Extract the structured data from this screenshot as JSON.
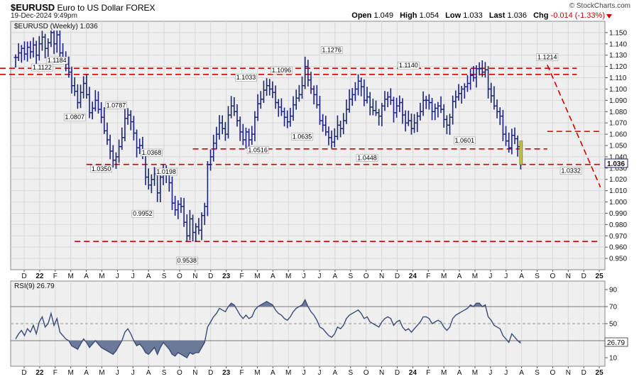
{
  "header": {
    "symbol": "$EURUSD",
    "name": "Euro to US Dollar",
    "exchange": "FOREX",
    "date": "19-Dec-2024 9:49pm",
    "copyright": "© StockCharts.com",
    "quote": {
      "open_label": "Open",
      "open": "1.049",
      "high_label": "High",
      "high": "1.054",
      "low_label": "Low",
      "low": "1.033",
      "last_label": "Last",
      "last": "1.036",
      "chg_label": "Chg",
      "chg": "-0.014 (-1.33%)"
    }
  },
  "price_legend": "$EURUSD (Weekly) 1.036",
  "rsi_legend": "RSI(9) 26.79",
  "price_last_tag": "1.036",
  "rsi_last_tag": "26.79",
  "x_ticks": [
    "D",
    "22",
    "F",
    "M",
    "A",
    "M",
    "J",
    "J",
    "A",
    "S",
    "O",
    "N",
    "D",
    "23",
    "F",
    "M",
    "A",
    "M",
    "J",
    "J",
    "A",
    "S",
    "O",
    "N",
    "D",
    "24",
    "F",
    "M",
    "A",
    "M",
    "J",
    "J",
    "A",
    "S",
    "O",
    "N",
    "D",
    "25"
  ],
  "chart_data": [
    {
      "type": "bar",
      "subtype": "ohlc-weekly",
      "title": "$EURUSD (Weekly) 1.036",
      "ylim": [
        0.94,
        1.16
      ],
      "y_ticks": [
        0.95,
        0.96,
        0.97,
        0.98,
        0.99,
        1.0,
        1.01,
        1.02,
        1.03,
        1.04,
        1.05,
        1.06,
        1.07,
        1.08,
        1.09,
        1.1,
        1.11,
        1.12,
        1.13,
        1.14,
        1.15
      ],
      "y_axis_side": "right",
      "grid": true,
      "closes": [
        1.128,
        1.132,
        1.136,
        1.131,
        1.137,
        1.133,
        1.139,
        1.13,
        1.14,
        1.146,
        1.136,
        1.141,
        1.15,
        1.14,
        1.148,
        1.132,
        1.128,
        1.122,
        1.115,
        1.103,
        1.098,
        1.088,
        1.097,
        1.105,
        1.095,
        1.079,
        1.083,
        1.09,
        1.082,
        1.075,
        1.063,
        1.055,
        1.045,
        1.037,
        1.04,
        1.049,
        1.057,
        1.074,
        1.077,
        1.071,
        1.061,
        1.048,
        1.05,
        1.042,
        1.022,
        1.015,
        1.02,
        1.025,
        1.008,
        1.022,
        1.029,
        1.025,
        1.017,
        0.999,
        0.993,
        0.998,
        0.996,
        0.982,
        0.97,
        0.985,
        0.973,
        0.978,
        0.975,
        0.988,
        0.996,
        1.033,
        1.04,
        1.052,
        1.06,
        1.07,
        1.065,
        1.06,
        1.077,
        1.085,
        1.08,
        1.072,
        1.062,
        1.055,
        1.062,
        1.055,
        1.06,
        1.075,
        1.087,
        1.091,
        1.099,
        1.103,
        1.1,
        1.097,
        1.088,
        1.084,
        1.08,
        1.075,
        1.071,
        1.076,
        1.086,
        1.092,
        1.095,
        1.103,
        1.12,
        1.108,
        1.1,
        1.095,
        1.086,
        1.072,
        1.068,
        1.062,
        1.057,
        1.053,
        1.058,
        1.068,
        1.065,
        1.072,
        1.082,
        1.091,
        1.095,
        1.1,
        1.107,
        1.102,
        1.09,
        1.093,
        1.084,
        1.081,
        1.079,
        1.076,
        1.085,
        1.091,
        1.093,
        1.09,
        1.079,
        1.085,
        1.088,
        1.077,
        1.07,
        1.072,
        1.065,
        1.07,
        1.076,
        1.08,
        1.09,
        1.09,
        1.088,
        1.08,
        1.083,
        1.085,
        1.082,
        1.073,
        1.068,
        1.075,
        1.089,
        1.093,
        1.096,
        1.1,
        1.102,
        1.105,
        1.112,
        1.11,
        1.118,
        1.118,
        1.115,
        1.117,
        1.1,
        1.094,
        1.085,
        1.08,
        1.076,
        1.06,
        1.054,
        1.048,
        1.059,
        1.056,
        1.049,
        1.036
      ],
      "ranges": [
        0.018
      ],
      "labels": [
        {
          "text": "1.1184",
          "x_index": 14,
          "y": 1.1184
        },
        {
          "text": "1.1122",
          "x_index": 9,
          "y": 1.1122
        },
        {
          "text": "1.0807",
          "x_index": 20,
          "y": 1.0807
        },
        {
          "text": "1.0787",
          "x_index": 34,
          "y": 1.0787
        },
        {
          "text": "1.0350",
          "x_index": 29,
          "y": 1.035
        },
        {
          "text": "1.0368",
          "x_index": 46,
          "y": 1.0368
        },
        {
          "text": "1.0198",
          "x_index": 51,
          "y": 1.0198
        },
        {
          "text": "0.9952",
          "x_index": 43,
          "y": 0.9952
        },
        {
          "text": "0.9538",
          "x_index": 58,
          "y": 0.9538
        },
        {
          "text": "1.1033",
          "x_index": 78,
          "y": 1.1033
        },
        {
          "text": "1.0516",
          "x_index": 82,
          "y": 1.0516
        },
        {
          "text": "1.1096",
          "x_index": 90,
          "y": 1.1096
        },
        {
          "text": "1.0635",
          "x_index": 97,
          "y": 1.0635
        },
        {
          "text": "1.1276",
          "x_index": 107,
          "y": 1.1276
        },
        {
          "text": "1.0448",
          "x_index": 119,
          "y": 1.0448
        },
        {
          "text": "1.1140",
          "x_index": 133,
          "y": 1.114
        },
        {
          "text": "1.0601",
          "x_index": 152,
          "y": 1.0601
        },
        {
          "text": "1.1214",
          "x_index": 180,
          "y": 1.1214
        },
        {
          "text": "1.0332",
          "x_index": 188,
          "y": 1.0332
        }
      ],
      "annotations": [
        {
          "kind": "horizontal",
          "y": 1.1184,
          "from_index": 0,
          "to_index": 190,
          "color": "#d00000",
          "style": "dashed"
        },
        {
          "kind": "horizontal",
          "y": 1.113,
          "from_index": 0,
          "to_index": 190,
          "color": "#d00000",
          "style": "dashed"
        },
        {
          "kind": "horizontal",
          "y": 1.0625,
          "from_index": 180,
          "to_index": 198,
          "color": "#d00000",
          "style": "dashed"
        },
        {
          "kind": "horizontal",
          "y": 1.047,
          "from_index": 60,
          "to_index": 180,
          "color": "#d00000",
          "style": "dashed"
        },
        {
          "kind": "horizontal",
          "y": 1.0332,
          "from_index": 24,
          "to_index": 198,
          "color": "#d00000",
          "style": "dashed"
        },
        {
          "kind": "horizontal",
          "y": 0.965,
          "from_index": 20,
          "to_index": 198,
          "color": "#d00000",
          "style": "dashed"
        },
        {
          "kind": "trendline",
          "x0_index": 180,
          "y0": 1.1214,
          "x1_index": 198,
          "y1": 1.013,
          "color": "#d00000",
          "style": "dashed"
        }
      ]
    },
    {
      "type": "line",
      "title": "RSI(9) 26.79",
      "ylim": [
        0,
        100
      ],
      "y_ticks": [
        10,
        30,
        50,
        70,
        90
      ],
      "reference_lines": [
        70,
        50,
        30
      ],
      "values": [
        32,
        38,
        42,
        36,
        44,
        40,
        48,
        38,
        52,
        58,
        46,
        50,
        62,
        48,
        56,
        40,
        36,
        32,
        30,
        24,
        22,
        20,
        26,
        32,
        28,
        22,
        26,
        30,
        26,
        22,
        20,
        18,
        16,
        14,
        18,
        24,
        30,
        40,
        44,
        38,
        30,
        24,
        26,
        22,
        16,
        14,
        18,
        22,
        14,
        22,
        28,
        24,
        20,
        14,
        12,
        16,
        14,
        12,
        10,
        16,
        14,
        16,
        16,
        22,
        28,
        46,
        52,
        58,
        62,
        68,
        66,
        64,
        70,
        74,
        72,
        66,
        60,
        56,
        60,
        56,
        58,
        66,
        70,
        72,
        74,
        76,
        74,
        72,
        66,
        62,
        60,
        56,
        54,
        58,
        64,
        68,
        70,
        72,
        78,
        70,
        64,
        60,
        54,
        46,
        44,
        40,
        36,
        34,
        38,
        46,
        44,
        48,
        56,
        60,
        62,
        64,
        66,
        62,
        56,
        58,
        52,
        50,
        48,
        46,
        52,
        56,
        58,
        56,
        48,
        52,
        54,
        46,
        42,
        44,
        40,
        44,
        48,
        52,
        58,
        58,
        56,
        50,
        52,
        54,
        52,
        46,
        42,
        46,
        56,
        60,
        62,
        64,
        66,
        68,
        72,
        70,
        74,
        74,
        70,
        72,
        58,
        54,
        48,
        46,
        44,
        36,
        32,
        28,
        38,
        34,
        30,
        27
      ],
      "last": 26.79
    }
  ]
}
